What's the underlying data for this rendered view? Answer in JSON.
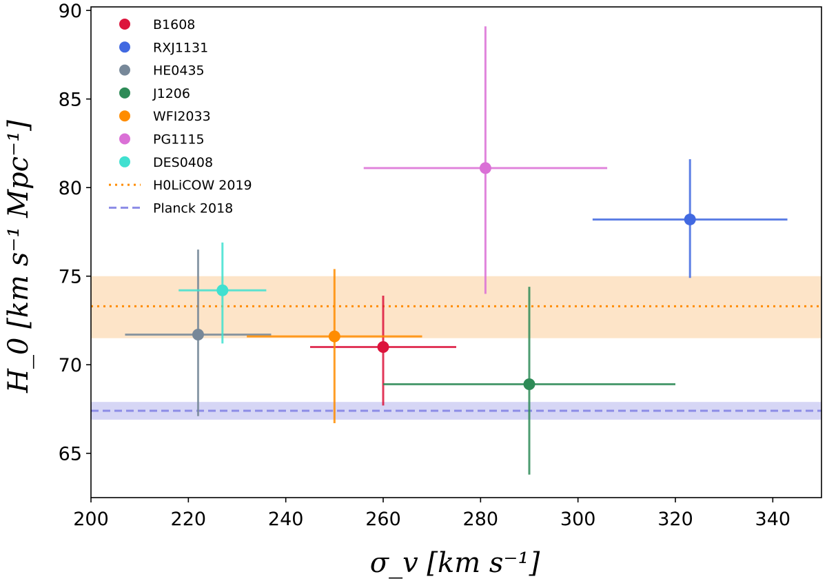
{
  "chart_data": {
    "type": "scatter",
    "title": "",
    "xlabel": "σ_v [km s⁻¹]",
    "ylabel": "H_0 [km s⁻¹ Mpc⁻¹]",
    "xlim": [
      200,
      350
    ],
    "ylim": [
      62.5,
      90.2
    ],
    "xticks": [
      200,
      220,
      240,
      260,
      280,
      300,
      320,
      340
    ],
    "yticks": [
      65,
      70,
      75,
      80,
      85,
      90
    ],
    "grid": false,
    "legend_position": "top-left",
    "series": [
      {
        "name": "B1608",
        "color": "#dc143c",
        "x": 260,
        "y": 71.0,
        "xerr": [
          15,
          15
        ],
        "yerr": [
          3.3,
          2.9
        ]
      },
      {
        "name": "RXJ1131",
        "color": "#4169e1",
        "x": 323,
        "y": 78.2,
        "xerr": [
          20,
          20
        ],
        "yerr": [
          3.3,
          3.4
        ]
      },
      {
        "name": "HE0435",
        "color": "#778899",
        "x": 222,
        "y": 71.7,
        "xerr": [
          15,
          15
        ],
        "yerr": [
          4.6,
          4.8
        ]
      },
      {
        "name": "J1206",
        "color": "#2e8b57",
        "x": 290,
        "y": 68.9,
        "xerr": [
          30,
          30
        ],
        "yerr": [
          5.1,
          5.5
        ]
      },
      {
        "name": "WFI2033",
        "color": "#ff8c00",
        "x": 250,
        "y": 71.6,
        "xerr": [
          18,
          18
        ],
        "yerr": [
          4.9,
          3.8
        ]
      },
      {
        "name": "PG1115",
        "color": "#da70d6",
        "x": 281,
        "y": 81.1,
        "xerr": [
          25,
          25
        ],
        "yerr": [
          7.1,
          8.0
        ]
      },
      {
        "name": "DES0408",
        "color": "#40e0d0",
        "x": 227,
        "y": 74.2,
        "xerr": [
          9,
          9
        ],
        "yerr": [
          3.0,
          2.7
        ]
      }
    ],
    "reference_lines": [
      {
        "name": "H0LiCOW 2019",
        "value": 73.3,
        "band": [
          71.5,
          75.0
        ],
        "color": "#ff8c00",
        "band_color": "#fde4c8",
        "style": "dotted"
      },
      {
        "name": "Planck 2018",
        "value": 67.4,
        "band": [
          66.9,
          67.9
        ],
        "color": "#8c8ce6",
        "band_color": "#d6d6f5",
        "style": "dashed"
      }
    ]
  }
}
